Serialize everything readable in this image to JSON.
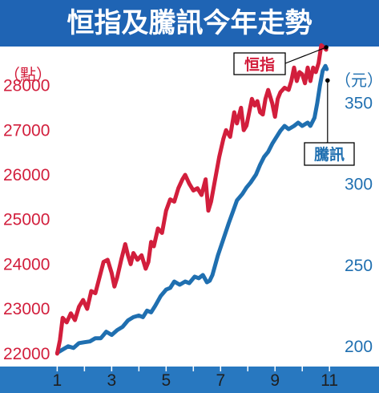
{
  "title": "恒指及騰訊今年走勢",
  "colors": {
    "title_bg": "#1f64b4",
    "hsi": "#d21e3c",
    "tencent": "#1f6fb0",
    "axis_band": "#2878c0"
  },
  "chart_data": {
    "type": "line",
    "title": "恒指及騰訊今年走勢",
    "left_axis": {
      "label": "（點）",
      "ticks": [
        "22000",
        "23000",
        "24000",
        "25000",
        "26000",
        "27000",
        "28000"
      ],
      "range": [
        21800,
        28800
      ]
    },
    "right_axis": {
      "label": "（元）",
      "ticks": [
        "200",
        "250",
        "300",
        "350"
      ],
      "range": [
        190,
        383
      ]
    },
    "x_axis": {
      "ticks": [
        "1",
        "3",
        "5",
        "7",
        "9",
        "11"
      ],
      "range": [
        0.9,
        11.2
      ]
    },
    "grid": false,
    "legend": "annotations",
    "series": [
      {
        "name": "恒指",
        "axis": "left",
        "color": "#d21e3c",
        "points": [
          [
            1.0,
            22000
          ],
          [
            1.1,
            22300
          ],
          [
            1.2,
            22800
          ],
          [
            1.35,
            22700
          ],
          [
            1.5,
            22900
          ],
          [
            1.65,
            22750
          ],
          [
            1.8,
            23050
          ],
          [
            1.95,
            23200
          ],
          [
            2.1,
            23000
          ],
          [
            2.25,
            23400
          ],
          [
            2.4,
            23350
          ],
          [
            2.55,
            23700
          ],
          [
            2.7,
            24050
          ],
          [
            2.85,
            24100
          ],
          [
            3.0,
            23800
          ],
          [
            3.1,
            23500
          ],
          [
            3.2,
            23700
          ],
          [
            3.35,
            24100
          ],
          [
            3.5,
            24450
          ],
          [
            3.6,
            24200
          ],
          [
            3.7,
            24000
          ],
          [
            3.8,
            24250
          ],
          [
            3.95,
            24100
          ],
          [
            4.1,
            24200
          ],
          [
            4.25,
            23900
          ],
          [
            4.35,
            24050
          ],
          [
            4.45,
            24500
          ],
          [
            4.55,
            24400
          ],
          [
            4.7,
            24800
          ],
          [
            4.85,
            24700
          ],
          [
            5.0,
            25200
          ],
          [
            5.15,
            25450
          ],
          [
            5.3,
            25400
          ],
          [
            5.45,
            25700
          ],
          [
            5.6,
            25900
          ],
          [
            5.7,
            26000
          ],
          [
            5.85,
            25800
          ],
          [
            6.0,
            25650
          ],
          [
            6.15,
            25700
          ],
          [
            6.3,
            25550
          ],
          [
            6.45,
            25900
          ],
          [
            6.55,
            25200
          ],
          [
            6.65,
            25400
          ],
          [
            6.8,
            25900
          ],
          [
            6.95,
            26400
          ],
          [
            7.1,
            26800
          ],
          [
            7.2,
            27000
          ],
          [
            7.35,
            26850
          ],
          [
            7.5,
            27400
          ],
          [
            7.6,
            27150
          ],
          [
            7.75,
            27500
          ],
          [
            7.85,
            27000
          ],
          [
            7.95,
            27100
          ],
          [
            8.05,
            27400
          ],
          [
            8.15,
            27700
          ],
          [
            8.25,
            27550
          ],
          [
            8.35,
            27650
          ],
          [
            8.45,
            27400
          ],
          [
            8.55,
            27350
          ],
          [
            8.65,
            27700
          ],
          [
            8.75,
            27900
          ],
          [
            8.9,
            27600
          ],
          [
            9.0,
            27300
          ],
          [
            9.1,
            27700
          ],
          [
            9.2,
            27850
          ],
          [
            9.35,
            27950
          ],
          [
            9.5,
            27900
          ],
          [
            9.6,
            28100
          ],
          [
            9.7,
            28400
          ],
          [
            9.8,
            28100
          ],
          [
            9.9,
            28300
          ],
          [
            10.0,
            28250
          ],
          [
            10.1,
            28050
          ],
          [
            10.2,
            28400
          ],
          [
            10.3,
            28100
          ],
          [
            10.4,
            28400
          ],
          [
            10.5,
            28300
          ],
          [
            10.6,
            28500
          ],
          [
            10.7,
            28900
          ],
          [
            10.8,
            28850
          ],
          [
            10.88,
            28800
          ]
        ]
      },
      {
        "name": "騰訊",
        "axis": "right",
        "color": "#1f6fb0",
        "points": [
          [
            1.0,
            196
          ],
          [
            1.2,
            198
          ],
          [
            1.4,
            200
          ],
          [
            1.6,
            199
          ],
          [
            1.8,
            202
          ],
          [
            2.0,
            202.5
          ],
          [
            2.2,
            203
          ],
          [
            2.4,
            205
          ],
          [
            2.6,
            205
          ],
          [
            2.8,
            209
          ],
          [
            3.0,
            207
          ],
          [
            3.2,
            210
          ],
          [
            3.4,
            212
          ],
          [
            3.6,
            216
          ],
          [
            3.8,
            218
          ],
          [
            4.0,
            219
          ],
          [
            4.15,
            218
          ],
          [
            4.3,
            222
          ],
          [
            4.45,
            221
          ],
          [
            4.6,
            225
          ],
          [
            4.8,
            231
          ],
          [
            5.0,
            235
          ],
          [
            5.15,
            236
          ],
          [
            5.3,
            240
          ],
          [
            5.5,
            238
          ],
          [
            5.7,
            240
          ],
          [
            5.85,
            239
          ],
          [
            6.05,
            243
          ],
          [
            6.2,
            242
          ],
          [
            6.35,
            244
          ],
          [
            6.5,
            239.5
          ],
          [
            6.6,
            240.5
          ],
          [
            6.7,
            244
          ],
          [
            6.9,
            256
          ],
          [
            7.1,
            266
          ],
          [
            7.3,
            276
          ],
          [
            7.45,
            283
          ],
          [
            7.6,
            290
          ],
          [
            7.8,
            294
          ],
          [
            7.95,
            298
          ],
          [
            8.1,
            301
          ],
          [
            8.3,
            306
          ],
          [
            8.45,
            312
          ],
          [
            8.6,
            317
          ],
          [
            8.75,
            320
          ],
          [
            8.9,
            325
          ],
          [
            9.05,
            329
          ],
          [
            9.2,
            333
          ],
          [
            9.35,
            336
          ],
          [
            9.5,
            334
          ],
          [
            9.7,
            336
          ],
          [
            9.85,
            338
          ],
          [
            10.0,
            336
          ],
          [
            10.2,
            338
          ],
          [
            10.3,
            336
          ],
          [
            10.45,
            341
          ],
          [
            10.55,
            350
          ],
          [
            10.65,
            361
          ],
          [
            10.75,
            370
          ],
          [
            10.85,
            373
          ],
          [
            10.9,
            371
          ]
        ]
      }
    ],
    "annotations": [
      {
        "text": "恒指",
        "color": "#d21e3c",
        "series": "恒指"
      },
      {
        "text": "騰訊",
        "color": "#1f6fb0",
        "series": "騰訊"
      }
    ]
  }
}
